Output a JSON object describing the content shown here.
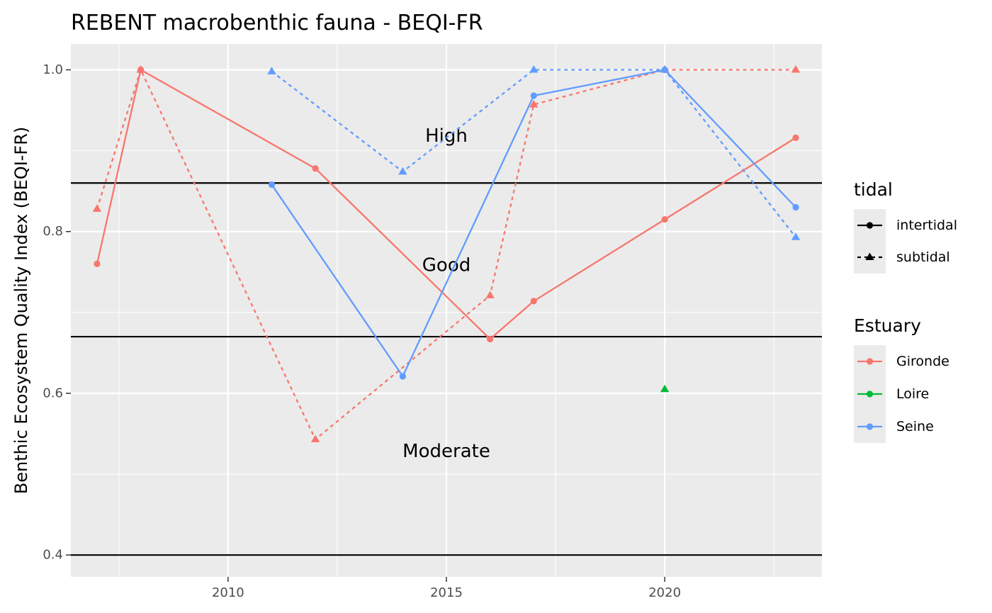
{
  "chart_data": {
    "type": "line",
    "title": "REBENT macrobenthic fauna - BEQI-FR",
    "xlabel": "",
    "ylabel": "Benthic Ecosystem Quality Index (BEQI-FR)",
    "xlim": [
      2006.4,
      2023.6
    ],
    "ylim": [
      0.373,
      1.032
    ],
    "x_ticks": [
      2010,
      2015,
      2020
    ],
    "x_tick_labels": [
      "2010",
      "2015",
      "2020"
    ],
    "y_ticks": [
      0.4,
      0.6,
      0.8,
      1.0
    ],
    "y_tick_labels": [
      "0.4",
      "0.6",
      "0.8",
      "1.0"
    ],
    "thresholds": [
      0.86,
      0.67,
      0.4
    ],
    "class_labels": [
      {
        "text": "High",
        "x": 2015,
        "y": 0.918
      },
      {
        "text": "Good",
        "x": 2015,
        "y": 0.758
      },
      {
        "text": "Moderate",
        "x": 2015,
        "y": 0.528
      }
    ],
    "colors": {
      "Gironde": "#F8766D",
      "Loire": "#00BA38",
      "Seine": "#619CFF"
    },
    "series": [
      {
        "estuary": "Gironde",
        "tidal": "intertidal",
        "x": [
          2007,
          2008,
          2012,
          2016,
          2017,
          2020,
          2023
        ],
        "y": [
          0.76,
          1.0,
          0.878,
          0.667,
          0.714,
          0.815,
          0.916
        ]
      },
      {
        "estuary": "Gironde",
        "tidal": "subtidal",
        "x": [
          2007,
          2008,
          2012,
          2016,
          2017,
          2020,
          2023
        ],
        "y": [
          0.828,
          1.0,
          0.543,
          0.721,
          0.957,
          1.0,
          1.0
        ]
      },
      {
        "estuary": "Loire",
        "tidal": "subtidal",
        "x": [
          2020
        ],
        "y": [
          0.605
        ]
      },
      {
        "estuary": "Seine",
        "tidal": "intertidal",
        "x": [
          2011,
          2014,
          2017,
          2020,
          2023
        ],
        "y": [
          0.858,
          0.621,
          0.968,
          1.0,
          0.83
        ]
      },
      {
        "estuary": "Seine",
        "tidal": "subtidal",
        "x": [
          2011,
          2014,
          2017,
          2020,
          2023
        ],
        "y": [
          0.998,
          0.874,
          1.0,
          1.0,
          0.793
        ]
      }
    ],
    "legend": {
      "placement": "right",
      "tidal_title": "tidal",
      "tidal_items": [
        {
          "label": "intertidal",
          "shape": "circle",
          "linetype": "solid"
        },
        {
          "label": "subtidal",
          "shape": "triangle",
          "linetype": "dashed"
        }
      ],
      "estuary_title": "Estuary",
      "estuary_items": [
        {
          "label": "Gironde"
        },
        {
          "label": "Loire"
        },
        {
          "label": "Seine"
        }
      ]
    },
    "grid": true,
    "panel_background": "#EBEBEB"
  }
}
